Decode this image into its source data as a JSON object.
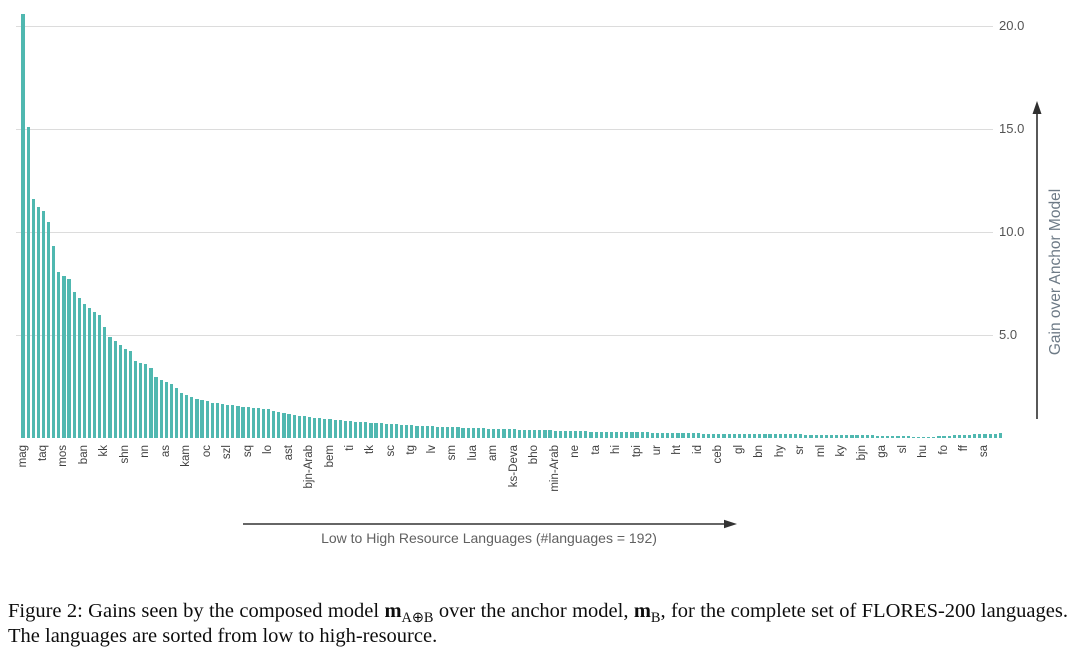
{
  "chart_data": {
    "type": "bar",
    "title": "",
    "xlabel": "Low to High Resource Languages (#languages = 192)",
    "ylabel": "Gain over Anchor Model",
    "n_languages": 192,
    "ylim": [
      0,
      21.3
    ],
    "grid": true,
    "bar_color": "#50b8b0",
    "yticks": [
      5.0,
      10.0,
      15.0,
      20.0
    ],
    "ytick_labels": [
      "5.0",
      "10.0",
      "15.0",
      "20.0"
    ],
    "tick_labels": [
      "mag",
      "taq",
      "mos",
      "ban",
      "kk",
      "shn",
      "nn",
      "as",
      "kam",
      "oc",
      "szl",
      "sq",
      "lo",
      "ast",
      "bjn-Arab",
      "bem",
      "ti",
      "tk",
      "sc",
      "tg",
      "lv",
      "sm",
      "lua",
      "am",
      "ks-Deva",
      "bho",
      "min-Arab",
      "ne",
      "ta",
      "hi",
      "tpi",
      "ur",
      "ht",
      "id",
      "ceb",
      "gl",
      "bn",
      "hy",
      "sr",
      "ml",
      "ky",
      "bjn",
      "ga",
      "sl",
      "hu",
      "fo",
      "ff",
      "sa"
    ],
    "label_every_n_bars": 4,
    "values": [
      20.6,
      15.1,
      11.6,
      11.2,
      11.0,
      10.5,
      9.3,
      8.05,
      7.85,
      7.7,
      7.1,
      6.8,
      6.5,
      6.3,
      6.1,
      5.95,
      5.4,
      4.9,
      4.7,
      4.5,
      4.3,
      4.2,
      3.75,
      3.65,
      3.6,
      3.4,
      2.95,
      2.8,
      2.7,
      2.6,
      2.45,
      2.2,
      2.1,
      2.0,
      1.9,
      1.85,
      1.8,
      1.72,
      1.68,
      1.65,
      1.62,
      1.58,
      1.55,
      1.52,
      1.5,
      1.47,
      1.45,
      1.43,
      1.4,
      1.32,
      1.26,
      1.2,
      1.15,
      1.11,
      1.08,
      1.05,
      1.02,
      0.99,
      0.96,
      0.93,
      0.9,
      0.88,
      0.86,
      0.84,
      0.82,
      0.8,
      0.78,
      0.76,
      0.74,
      0.72,
      0.71,
      0.69,
      0.68,
      0.66,
      0.65,
      0.63,
      0.62,
      0.6,
      0.59,
      0.58,
      0.57,
      0.55,
      0.54,
      0.53,
      0.52,
      0.51,
      0.5,
      0.49,
      0.49,
      0.48,
      0.47,
      0.46,
      0.46,
      0.45,
      0.44,
      0.43,
      0.42,
      0.41,
      0.4,
      0.4,
      0.39,
      0.38,
      0.37,
      0.37,
      0.36,
      0.35,
      0.34,
      0.34,
      0.33,
      0.32,
      0.32,
      0.31,
      0.31,
      0.31,
      0.3,
      0.3,
      0.3,
      0.29,
      0.29,
      0.28,
      0.28,
      0.27,
      0.27,
      0.26,
      0.26,
      0.25,
      0.25,
      0.24,
      0.24,
      0.23,
      0.23,
      0.22,
      0.22,
      0.21,
      0.21,
      0.21,
      0.21,
      0.2,
      0.2,
      0.2,
      0.2,
      0.19,
      0.19,
      0.19,
      0.19,
      0.18,
      0.18,
      0.18,
      0.18,
      0.17,
      0.17,
      0.17,
      0.17,
      0.16,
      0.16,
      0.16,
      0.16,
      0.15,
      0.15,
      0.15,
      0.15,
      0.14,
      0.14,
      0.14,
      0.14,
      0.13,
      0.13,
      0.12,
      0.12,
      0.11,
      0.1,
      0.1,
      0.09,
      0.08,
      0.07,
      0.06,
      0.06,
      0.05,
      0.06,
      0.08,
      0.1,
      0.12,
      0.13,
      0.14,
      0.15,
      0.16,
      0.17,
      0.17,
      0.18,
      0.18,
      0.2,
      0.22
    ]
  },
  "figure": {
    "caption_prefix": "Figure 2: Gains seen by the composed model ",
    "m1": "m",
    "m1_sub": "A⊕B",
    "caption_mid": " over the anchor model, ",
    "m2": "m",
    "m2_sub": "B",
    "caption_suffix": ", for the complete set of FLORES-200 languages. The languages are sorted from low to high-resource."
  }
}
